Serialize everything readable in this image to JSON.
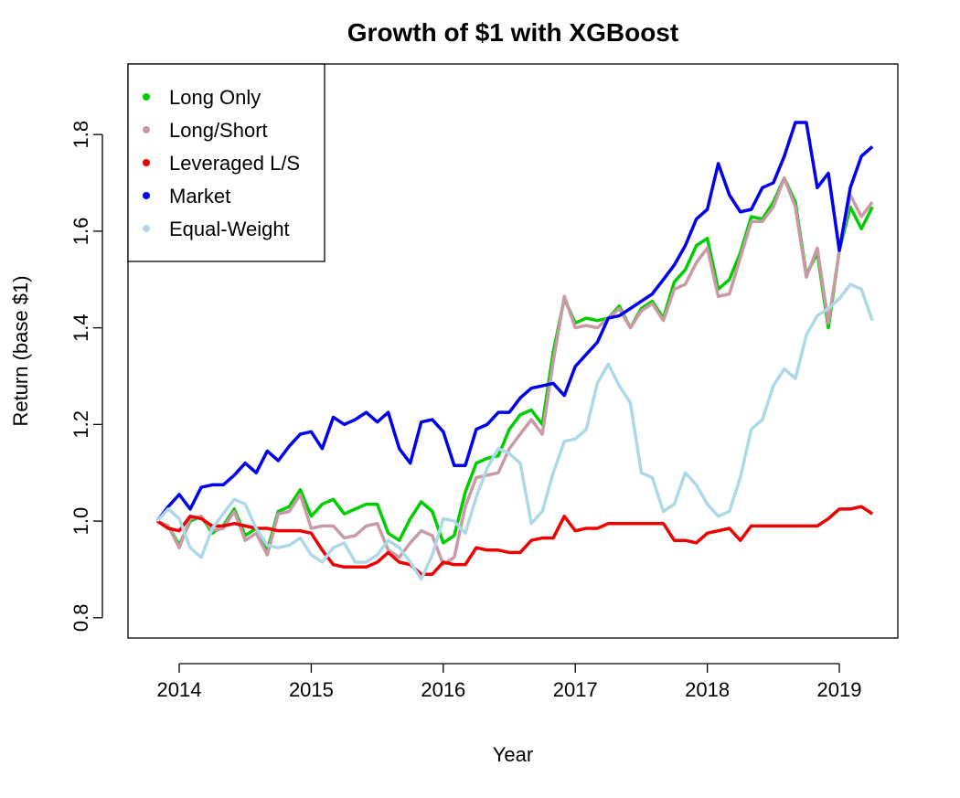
{
  "chart_data": {
    "type": "line",
    "title": "Growth of $1 with XGBoost",
    "xlabel": "Year",
    "ylabel": "Return (base $1)",
    "legend": "top-left",
    "grid": false,
    "xlim": [
      2013.612,
      2019.443
    ],
    "ylim": [
      0.758,
      1.946
    ],
    "xticks": [
      2014,
      2015,
      2016,
      2017,
      2018,
      2019
    ],
    "yticks": [
      0.8,
      {
        "value": 1,
        "label": "1.0"
      },
      1.2,
      1.4,
      1.6,
      1.8
    ],
    "x": [
      2013.833,
      2013.917,
      2014,
      2014.083,
      2014.167,
      2014.25,
      2014.333,
      2014.417,
      2014.5,
      2014.583,
      2014.667,
      2014.75,
      2014.833,
      2014.917,
      2015,
      2015.083,
      2015.167,
      2015.25,
      2015.333,
      2015.417,
      2015.5,
      2015.583,
      2015.667,
      2015.75,
      2015.833,
      2015.917,
      2016,
      2016.083,
      2016.167,
      2016.25,
      2016.333,
      2016.417,
      2016.5,
      2016.583,
      2016.667,
      2016.75,
      2016.833,
      2016.917,
      2017,
      2017.083,
      2017.167,
      2017.25,
      2017.333,
      2017.417,
      2017.5,
      2017.583,
      2017.667,
      2017.75,
      2017.833,
      2017.917,
      2018,
      2018.083,
      2018.167,
      2018.25,
      2018.333,
      2018.417,
      2018.5,
      2018.583,
      2018.667,
      2018.75,
      2018.833,
      2018.917,
      2019,
      2019.083,
      2019.167,
      2019.25
    ],
    "series": [
      {
        "name": "Long Only",
        "color": "#00cd00",
        "values": [
          1.0,
          0.99,
          0.95,
          1.0,
          1.01,
          0.975,
          0.99,
          1.025,
          0.97,
          0.985,
          0.94,
          1.02,
          1.03,
          1.065,
          1.01,
          1.035,
          1.045,
          1.015,
          1.025,
          1.035,
          1.035,
          0.975,
          0.96,
          1.005,
          1.04,
          1.02,
          0.955,
          0.97,
          1.06,
          1.12,
          1.13,
          1.135,
          1.19,
          1.22,
          1.23,
          1.2,
          1.35,
          1.46,
          1.41,
          1.42,
          1.415,
          1.42,
          1.445,
          1.4,
          1.44,
          1.455,
          1.42,
          1.495,
          1.52,
          1.57,
          1.585,
          1.48,
          1.5,
          1.555,
          1.63,
          1.625,
          1.66,
          1.71,
          1.66,
          1.51,
          1.555,
          1.4,
          1.56,
          1.65,
          1.605,
          1.65
        ]
      },
      {
        "name": "Long/Short",
        "color": "#c99aa6",
        "values": [
          1.0,
          0.99,
          0.945,
          1.005,
          1.01,
          0.98,
          0.985,
          1.02,
          0.96,
          0.975,
          0.93,
          1.015,
          1.02,
          1.055,
          0.985,
          0.99,
          0.99,
          0.965,
          0.97,
          0.99,
          0.995,
          0.94,
          0.925,
          0.955,
          0.98,
          0.97,
          0.91,
          0.925,
          1.03,
          1.09,
          1.095,
          1.1,
          1.15,
          1.18,
          1.21,
          1.18,
          1.33,
          1.465,
          1.4,
          1.405,
          1.4,
          1.42,
          1.44,
          1.4,
          1.435,
          1.45,
          1.415,
          1.48,
          1.49,
          1.535,
          1.565,
          1.465,
          1.47,
          1.545,
          1.62,
          1.62,
          1.65,
          1.71,
          1.65,
          1.505,
          1.565,
          1.41,
          1.56,
          1.675,
          1.63,
          1.66
        ]
      },
      {
        "name": "Leveraged L/S",
        "color": "#ee0000",
        "values": [
          1.0,
          0.985,
          0.98,
          1.01,
          1.005,
          0.99,
          0.99,
          0.995,
          0.99,
          0.985,
          0.985,
          0.98,
          0.98,
          0.98,
          0.975,
          0.94,
          0.91,
          0.905,
          0.905,
          0.905,
          0.915,
          0.935,
          0.915,
          0.91,
          0.89,
          0.89,
          0.915,
          0.91,
          0.91,
          0.945,
          0.94,
          0.94,
          0.935,
          0.935,
          0.96,
          0.965,
          0.965,
          1.01,
          0.98,
          0.985,
          0.985,
          0.995,
          0.995,
          0.995,
          0.995,
          0.995,
          0.995,
          0.96,
          0.96,
          0.955,
          0.975,
          0.98,
          0.985,
          0.96,
          0.99,
          0.99,
          0.99,
          0.99,
          0.99,
          0.99,
          0.99,
          1.005,
          1.025,
          1.025,
          1.03,
          1.015
        ]
      },
      {
        "name": "Market",
        "color": "#0000ee",
        "values": [
          1.0,
          1.03,
          1.055,
          1.025,
          1.07,
          1.075,
          1.075,
          1.095,
          1.12,
          1.1,
          1.145,
          1.125,
          1.155,
          1.18,
          1.185,
          1.15,
          1.215,
          1.2,
          1.21,
          1.225,
          1.205,
          1.225,
          1.15,
          1.12,
          1.205,
          1.21,
          1.185,
          1.115,
          1.115,
          1.19,
          1.2,
          1.225,
          1.225,
          1.255,
          1.275,
          1.28,
          1.285,
          1.26,
          1.32,
          1.345,
          1.37,
          1.42,
          1.425,
          1.44,
          1.455,
          1.47,
          1.5,
          1.53,
          1.57,
          1.625,
          1.645,
          1.74,
          1.675,
          1.64,
          1.645,
          1.69,
          1.7,
          1.755,
          1.825,
          1.825,
          1.69,
          1.72,
          1.56,
          1.69,
          1.755,
          1.775
        ]
      },
      {
        "name": "Equal-Weight",
        "color": "#add8e6",
        "values": [
          1.0,
          1.025,
          1.005,
          0.945,
          0.925,
          0.985,
          1.015,
          1.045,
          1.035,
          0.985,
          0.95,
          0.945,
          0.95,
          0.965,
          0.93,
          0.915,
          0.945,
          0.955,
          0.915,
          0.915,
          0.93,
          0.96,
          0.945,
          0.915,
          0.88,
          0.93,
          1.005,
          1.0,
          0.975,
          1.05,
          1.11,
          1.15,
          1.14,
          1.12,
          0.995,
          1.02,
          1.1,
          1.165,
          1.17,
          1.19,
          1.285,
          1.325,
          1.28,
          1.245,
          1.1,
          1.09,
          1.02,
          1.035,
          1.1,
          1.075,
          1.035,
          1.01,
          1.02,
          1.09,
          1.19,
          1.21,
          1.28,
          1.315,
          1.295,
          1.385,
          1.425,
          1.44,
          1.46,
          1.49,
          1.48,
          1.415
        ]
      }
    ]
  }
}
